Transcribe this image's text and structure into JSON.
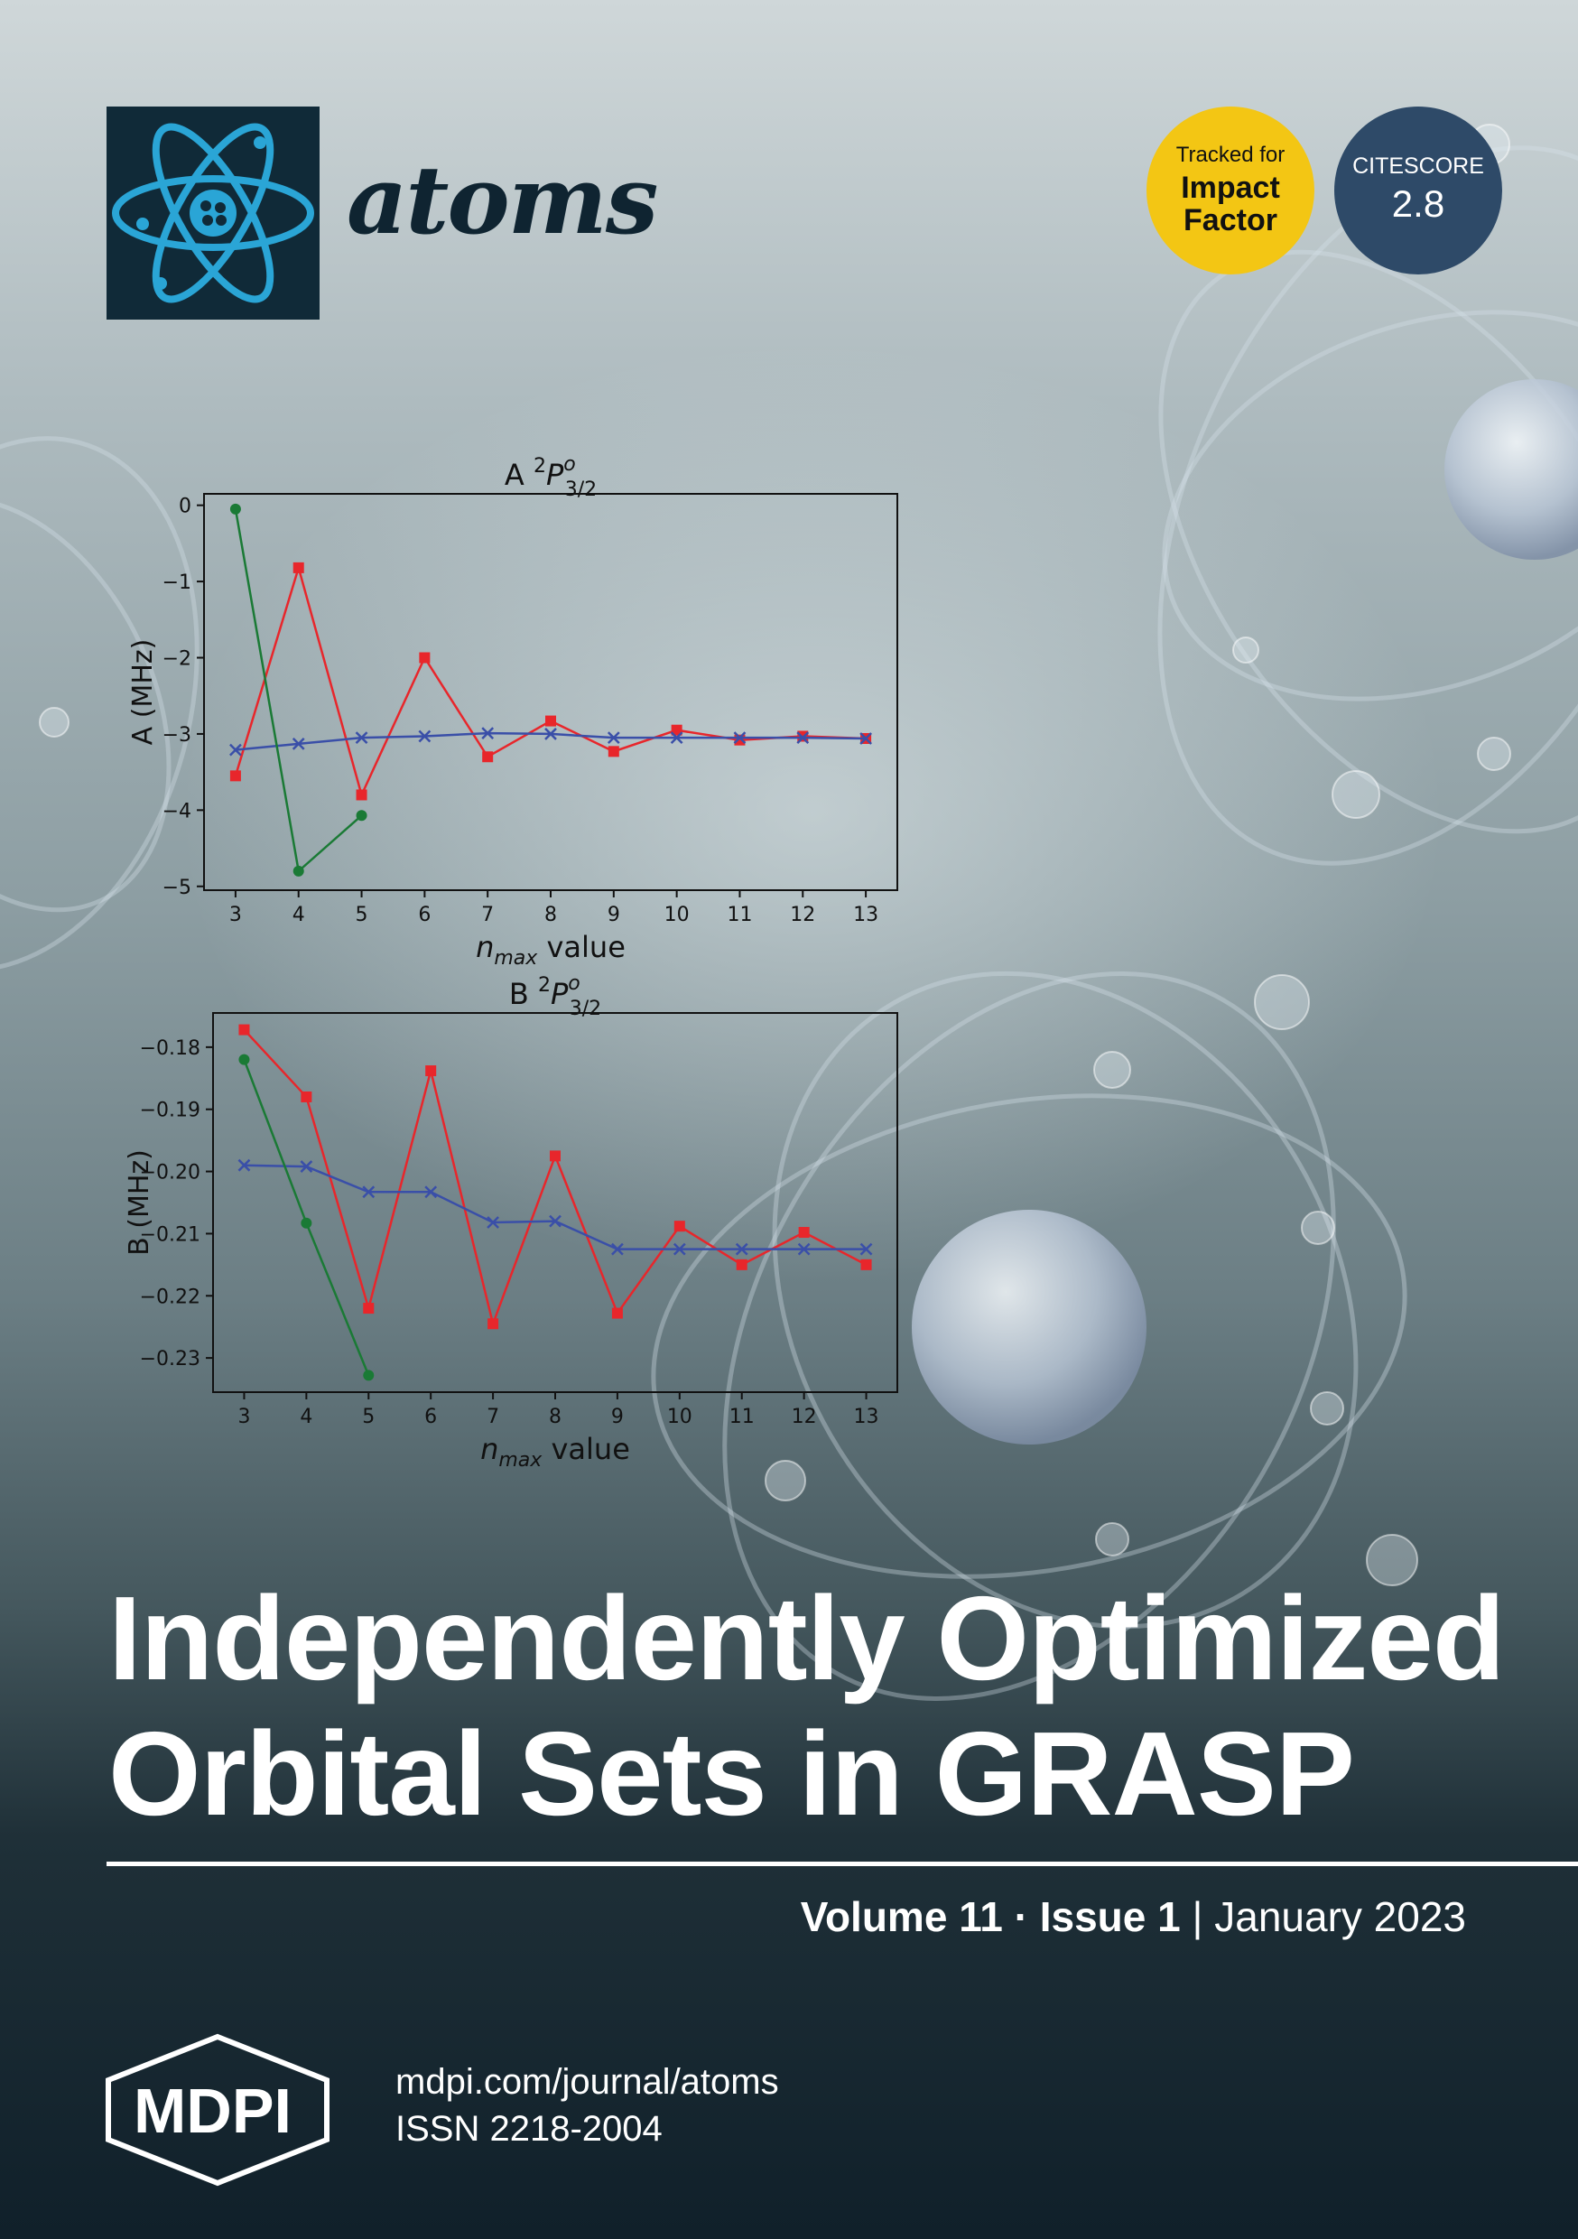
{
  "journal": {
    "title": "atoms"
  },
  "badges": {
    "impact": {
      "line1": "Tracked for",
      "line2": "Impact",
      "line3": "Factor"
    },
    "citescore": {
      "label": "CITESCORE",
      "value": "2.8"
    }
  },
  "headline": {
    "line1": "Independently Optimized",
    "line2": "Orbital Sets in GRASP"
  },
  "issue": {
    "volume": "Volume 11",
    "separator": "·",
    "issue": "Issue 1",
    "pipe": "|",
    "date": "January 2023"
  },
  "publisher": {
    "name": "MDPI",
    "url": "mdpi.com/journal/atoms",
    "issn": "ISSN 2218-2004"
  },
  "colors": {
    "red": "#e8262b",
    "blue": "#3a4fa8",
    "green": "#1a7a35"
  },
  "chart_data": [
    {
      "type": "line",
      "title": "A ²P°₃/₂",
      "title_main": "A ",
      "title_sup": "2",
      "title_P": "P",
      "title_o": "o",
      "title_sub": "3/2",
      "xlabel_n": "n",
      "xlabel_sub": "max",
      "xlabel_rest": " value",
      "ylabel": "A (MHz)",
      "xlim": [
        2.5,
        13.5
      ],
      "ylim": [
        -5.05,
        0.15
      ],
      "xticks": [
        "3",
        "4",
        "5",
        "6",
        "7",
        "8",
        "9",
        "10",
        "11",
        "12",
        "13"
      ],
      "yticks": [
        "0",
        "−1",
        "−2",
        "−3",
        "−4",
        "−5"
      ],
      "ytick_values": [
        0,
        -1,
        -2,
        -3,
        -4,
        -5
      ],
      "series": [
        {
          "color": "#e8262b",
          "marker": "square",
          "x": [
            3,
            4,
            5,
            6,
            7,
            8,
            9,
            10,
            11,
            12,
            13
          ],
          "y": [
            -3.55,
            -0.82,
            -3.8,
            -2.0,
            -3.3,
            -2.83,
            -3.23,
            -2.95,
            -3.08,
            -3.03,
            -3.06
          ]
        },
        {
          "color": "#3a4fa8",
          "marker": "x",
          "x": [
            3,
            4,
            5,
            6,
            7,
            8,
            9,
            10,
            11,
            12,
            13
          ],
          "y": [
            -3.21,
            -3.13,
            -3.05,
            -3.03,
            -2.99,
            -3.0,
            -3.05,
            -3.05,
            -3.05,
            -3.05,
            -3.06
          ]
        },
        {
          "color": "#1a7a35",
          "marker": "circle",
          "x": [
            3,
            4,
            5
          ],
          "y": [
            -0.05,
            -4.8,
            -4.07
          ]
        }
      ]
    },
    {
      "type": "line",
      "title": "B ²P°₃/₂",
      "title_main": "B ",
      "title_sup": "2",
      "title_P": "P",
      "title_o": "o",
      "title_sub": "3/2",
      "xlabel_n": "n",
      "xlabel_sub": "max",
      "xlabel_rest": " value",
      "ylabel": "B (MHz)",
      "xlim": [
        2.5,
        13.5
      ],
      "ylim": [
        -0.2355,
        -0.1745
      ],
      "xticks": [
        "3",
        "4",
        "5",
        "6",
        "7",
        "8",
        "9",
        "10",
        "11",
        "12",
        "13"
      ],
      "yticks": [
        "−0.18",
        "−0.19",
        "−0.20",
        "−0.21",
        "−0.22",
        "−0.23"
      ],
      "ytick_values": [
        -0.18,
        -0.19,
        -0.2,
        -0.21,
        -0.22,
        -0.23
      ],
      "series": [
        {
          "color": "#e8262b",
          "marker": "square",
          "x": [
            3,
            4,
            5,
            6,
            7,
            8,
            9,
            10,
            11,
            12,
            13
          ],
          "y": [
            -0.1772,
            -0.188,
            -0.222,
            -0.1838,
            -0.2245,
            -0.1975,
            -0.2228,
            -0.2088,
            -0.215,
            -0.2098,
            -0.215
          ]
        },
        {
          "color": "#3a4fa8",
          "marker": "x",
          "x": [
            3,
            4,
            5,
            6,
            7,
            8,
            9,
            10,
            11,
            12,
            13
          ],
          "y": [
            -0.199,
            -0.1992,
            -0.2033,
            -0.2033,
            -0.2082,
            -0.208,
            -0.2125,
            -0.2125,
            -0.2125,
            -0.2125,
            -0.2125
          ]
        },
        {
          "color": "#1a7a35",
          "marker": "circle",
          "x": [
            3,
            4,
            5
          ],
          "y": [
            -0.182,
            -0.2083,
            -0.2328
          ]
        }
      ]
    }
  ]
}
